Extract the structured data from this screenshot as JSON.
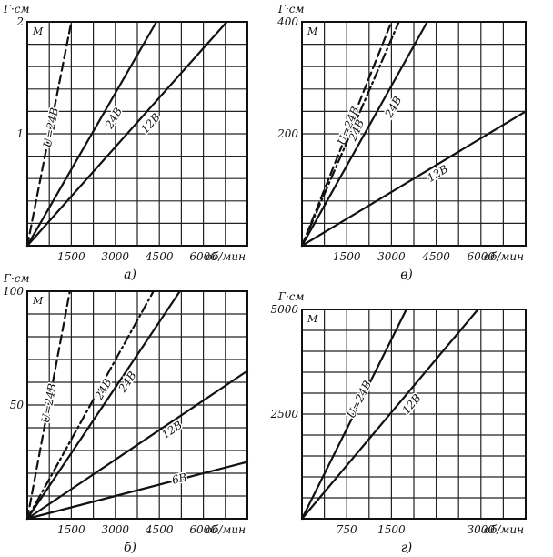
{
  "chart_data": [
    {
      "type": "line",
      "caption": "а)",
      "y_unit": "Г·см",
      "x_unit": "об/мин",
      "corner_label": "М",
      "xlim": [
        0,
        7500
      ],
      "ylim": [
        0,
        2
      ],
      "x_ticks": [
        1500,
        3000,
        4500,
        6000
      ],
      "x_tick_labels": [
        "1500",
        "3000",
        "4500",
        "6000"
      ],
      "y_ticks": [
        1,
        2
      ],
      "y_tick_labels": [
        "1",
        "2"
      ],
      "grid": true,
      "series": [
        {
          "name": "U=24В",
          "style": "dashed",
          "x": [
            0,
            1500
          ],
          "y": [
            0,
            2
          ]
        },
        {
          "name": "24В",
          "style": "solid",
          "x": [
            0,
            4400
          ],
          "y": [
            0,
            2
          ]
        },
        {
          "name": "12В",
          "style": "solid",
          "x": [
            0,
            6800
          ],
          "y": [
            0,
            2
          ]
        }
      ]
    },
    {
      "type": "line",
      "caption": "в)",
      "y_unit": "Г·см",
      "x_unit": "об/мин",
      "corner_label": "М",
      "xlim": [
        0,
        7500
      ],
      "ylim": [
        0,
        400
      ],
      "x_ticks": [
        1500,
        3000,
        4500,
        6000
      ],
      "x_tick_labels": [
        "1500",
        "3000",
        "4500",
        "6000"
      ],
      "y_ticks": [
        200,
        400
      ],
      "y_tick_labels": [
        "200",
        "400"
      ],
      "grid": true,
      "series": [
        {
          "name": "U=24В",
          "style": "dashed",
          "x": [
            0,
            3000
          ],
          "y": [
            0,
            400
          ]
        },
        {
          "name": "24В",
          "style": "dashdot",
          "x": [
            0,
            3250
          ],
          "y": [
            0,
            400
          ]
        },
        {
          "name": "24В",
          "style": "solid",
          "x": [
            0,
            4200
          ],
          "y": [
            0,
            400
          ]
        },
        {
          "name": "12В",
          "style": "solid",
          "x": [
            0,
            7500
          ],
          "y": [
            0,
            240
          ]
        }
      ]
    },
    {
      "type": "line",
      "caption": "б)",
      "y_unit": "Г·см",
      "x_unit": "об/мин",
      "corner_label": "М",
      "xlim": [
        0,
        7500
      ],
      "ylim": [
        0,
        100
      ],
      "x_ticks": [
        1500,
        3000,
        4500,
        6000
      ],
      "x_tick_labels": [
        "1500",
        "3000",
        "4500",
        "6000"
      ],
      "y_ticks": [
        50,
        100
      ],
      "y_tick_labels": [
        "50",
        "100"
      ],
      "grid": true,
      "series": [
        {
          "name": "U=24В",
          "style": "dashed",
          "x": [
            0,
            1450
          ],
          "y": [
            0,
            100
          ]
        },
        {
          "name": "24В",
          "style": "dashdot",
          "x": [
            0,
            4300
          ],
          "y": [
            0,
            100
          ]
        },
        {
          "name": "24В",
          "style": "solid",
          "x": [
            0,
            5200
          ],
          "y": [
            0,
            100
          ]
        },
        {
          "name": "12В",
          "style": "solid",
          "x": [
            0,
            7500
          ],
          "y": [
            0,
            65
          ]
        },
        {
          "name": "6В",
          "style": "solid",
          "x": [
            0,
            7500
          ],
          "y": [
            0,
            25
          ]
        }
      ]
    },
    {
      "type": "line",
      "caption": "г)",
      "y_unit": "Г·см",
      "x_unit": "об/мин",
      "corner_label": "М",
      "xlim": [
        0,
        3750
      ],
      "ylim": [
        0,
        5000
      ],
      "x_ticks": [
        750,
        1500,
        3000
      ],
      "x_tick_labels": [
        "750",
        "1500",
        "3000"
      ],
      "y_ticks": [
        2500,
        5000
      ],
      "y_tick_labels": [
        "2500",
        "5000"
      ],
      "grid": true,
      "series": [
        {
          "name": "U=24В",
          "style": "solid",
          "x": [
            0,
            1750
          ],
          "y": [
            0,
            5000
          ]
        },
        {
          "name": "12В",
          "style": "solid",
          "x": [
            0,
            2950
          ],
          "y": [
            0,
            5000
          ]
        }
      ]
    }
  ]
}
